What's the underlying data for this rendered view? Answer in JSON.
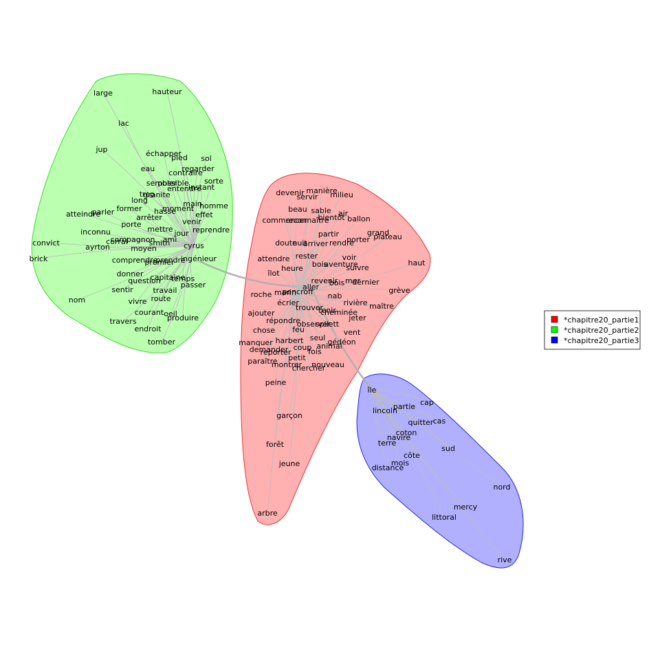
{
  "legend": {
    "items": [
      {
        "label": "*chapitre20_partie1",
        "color": "#ff0000"
      },
      {
        "label": "*chapitre20_partie2",
        "color": "#00ff00"
      },
      {
        "label": "*chapitre20_partie3",
        "color": "#0000ff"
      }
    ]
  },
  "clusters": [
    {
      "key": "partie2",
      "fill": "#bbffb0",
      "stroke": "#33dd22",
      "hub": "cyrus",
      "words": [
        "large",
        "hauteur",
        "lac",
        "jup",
        "échapper",
        "pied",
        "sol",
        "eau",
        "regarder",
        "contraire",
        "sembler",
        "possible",
        "entendre",
        "instant",
        "sorte",
        "trop",
        "granite",
        "main",
        "homme",
        "long",
        "former",
        "moment",
        "parler",
        "atteindre",
        "effet",
        "hasse",
        "arrêter",
        "venir",
        "porte",
        "reprendre",
        "mettre",
        "inconnu",
        "jour",
        "corral",
        "compagnon",
        "smith",
        "ami",
        "convict",
        "ayrton",
        "moyen",
        "cyrus",
        "ingénieur",
        "brick",
        "comprendre",
        "prendre",
        "premier",
        "donner",
        "capitaine",
        "temps",
        "question",
        "passer",
        "sentir",
        "travail",
        "nom",
        "vivre",
        "route",
        "courant",
        "oeil",
        "produire",
        "travers",
        "endroit",
        "tomber"
      ]
    },
    {
      "key": "partie1",
      "fill": "#ffb0b0",
      "stroke": "#ee3333",
      "hub": "pencroff",
      "words": [
        "devenir",
        "manière",
        "milieu",
        "servir",
        "beau",
        "sable",
        "air",
        "commencer",
        "reconnaître",
        "bientôt",
        "ballon",
        "partir",
        "grand",
        "plateau",
        "doute",
        "nuit",
        "arriver",
        "rendre",
        "porter",
        "haut",
        "attendre",
        "rester",
        "bois",
        "aventure",
        "voir",
        "heure",
        "suivre",
        "îlot",
        "revenir",
        "bois",
        "mer",
        "dernier",
        "aller",
        "grève",
        "roche",
        "marin",
        "pencroff",
        "nab",
        "écrier",
        "trouver",
        "rivière",
        "maître",
        "tenir",
        "cheminée",
        "ajouter",
        "jeter",
        "répondre",
        "observer",
        "spilett",
        "feu",
        "vent",
        "chose",
        "harbert",
        "seul",
        "gédéon",
        "manquer",
        "animal",
        "demander",
        "coup",
        "reporter",
        "fois",
        "petit",
        "paraître",
        "montrer",
        "nouveau",
        "chercher",
        "peine",
        "garçon",
        "forêt",
        "jeune",
        "arbre"
      ]
    },
    {
      "key": "partie3",
      "fill": "#b0b0ff",
      "stroke": "#2222ee",
      "hub": "île",
      "words": [
        "île",
        "lincoln",
        "partie",
        "cap",
        "quitter",
        "cas",
        "coton",
        "navire",
        "terre",
        "sud",
        "côte",
        "mois",
        "distance",
        "nord",
        "mercy",
        "littoral",
        "rive"
      ]
    }
  ]
}
